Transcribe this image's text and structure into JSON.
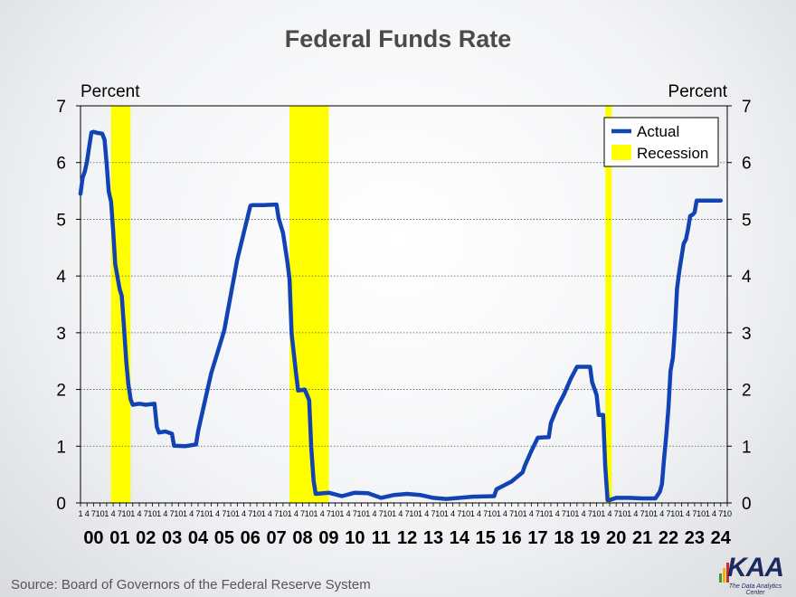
{
  "source": "Source: Board of Governors of the Federal Reserve System",
  "logo": {
    "text": "KAA",
    "tagline": "The Data Analytics Center"
  },
  "colors": {
    "actual": "#1243b4",
    "recession": "#ffff00",
    "title": "#4a4a4a"
  },
  "chart_data": {
    "type": "line",
    "title": "Federal Funds Rate",
    "ylabel_left": "Percent",
    "ylabel_right": "Percent",
    "ylim": [
      0,
      7
    ],
    "yticks": [
      0,
      1,
      2,
      3,
      4,
      5,
      6,
      7
    ],
    "xlim": [
      2000.0,
      2024.75
    ],
    "grid": "horizontal dotted",
    "legend_position": "top-right",
    "quarter_tick_labels": [
      "1",
      "4",
      "7",
      "10"
    ],
    "year_labels": [
      "00",
      "01",
      "02",
      "03",
      "04",
      "05",
      "06",
      "07",
      "08",
      "09",
      "10",
      "11",
      "12",
      "13",
      "14",
      "15",
      "16",
      "17",
      "18",
      "19",
      "20",
      "21",
      "22",
      "23",
      "24"
    ],
    "legend": [
      "Actual",
      "Recession"
    ],
    "recessions": [
      {
        "start": 2001.167,
        "end": 2001.917
      },
      {
        "start": 2008.0,
        "end": 2009.5
      },
      {
        "start": 2020.083,
        "end": 2020.333
      }
    ],
    "series": [
      {
        "name": "Actual",
        "x": [
          2000.0,
          2000.08,
          2000.17,
          2000.25,
          2000.33,
          2000.42,
          2000.5,
          2000.67,
          2000.83,
          2000.92,
          2001.0,
          2001.08,
          2001.17,
          2001.25,
          2001.33,
          2001.42,
          2001.5,
          2001.58,
          2001.67,
          2001.75,
          2001.83,
          2001.92,
          2002.0,
          2002.25,
          2002.5,
          2002.83,
          2002.92,
          2003.0,
          2003.25,
          2003.5,
          2003.58,
          2004.0,
          2004.42,
          2004.5,
          2004.67,
          2005.0,
          2005.5,
          2006.0,
          2006.5,
          2006.58,
          2007.0,
          2007.5,
          2007.58,
          2007.75,
          2007.92,
          2008.0,
          2008.08,
          2008.17,
          2008.25,
          2008.33,
          2008.58,
          2008.75,
          2008.83,
          2008.92,
          2009.0,
          2009.5,
          2010.0,
          2010.5,
          2011.0,
          2011.5,
          2012.0,
          2012.5,
          2013.0,
          2013.5,
          2014.0,
          2014.5,
          2015.0,
          2015.83,
          2015.92,
          2016.5,
          2016.92,
          2017.0,
          2017.25,
          2017.5,
          2017.92,
          2018.0,
          2018.25,
          2018.5,
          2018.75,
          2019.0,
          2019.5,
          2019.58,
          2019.75,
          2019.83,
          2020.0,
          2020.08,
          2020.17,
          2020.25,
          2020.5,
          2021.0,
          2021.5,
          2022.0,
          2022.17,
          2022.25,
          2022.33,
          2022.42,
          2022.5,
          2022.58,
          2022.67,
          2022.75,
          2022.83,
          2022.92,
          2023.0,
          2023.08,
          2023.17,
          2023.25,
          2023.33,
          2023.42,
          2023.5,
          2023.58,
          2024.0,
          2024.5
        ],
        "values": [
          5.45,
          5.73,
          5.85,
          6.02,
          6.27,
          6.53,
          6.54,
          6.52,
          6.51,
          6.4,
          5.98,
          5.49,
          5.31,
          4.8,
          4.21,
          3.97,
          3.77,
          3.65,
          3.07,
          2.49,
          2.09,
          1.82,
          1.73,
          1.75,
          1.73,
          1.75,
          1.34,
          1.24,
          1.26,
          1.22,
          1.01,
          1.0,
          1.03,
          1.26,
          1.61,
          2.28,
          3.04,
          4.29,
          5.24,
          5.25,
          5.25,
          5.26,
          5.02,
          4.76,
          4.24,
          3.94,
          2.98,
          2.61,
          2.28,
          1.98,
          2.0,
          1.81,
          0.97,
          0.39,
          0.16,
          0.18,
          0.12,
          0.18,
          0.17,
          0.09,
          0.14,
          0.16,
          0.14,
          0.09,
          0.07,
          0.09,
          0.11,
          0.12,
          0.24,
          0.38,
          0.54,
          0.65,
          0.91,
          1.15,
          1.16,
          1.41,
          1.69,
          1.91,
          2.18,
          2.4,
          2.4,
          2.13,
          1.9,
          1.55,
          1.55,
          0.65,
          0.05,
          0.05,
          0.09,
          0.09,
          0.08,
          0.08,
          0.2,
          0.33,
          0.77,
          1.21,
          1.68,
          2.33,
          2.56,
          3.08,
          3.78,
          4.1,
          4.33,
          4.57,
          4.65,
          4.83,
          5.06,
          5.08,
          5.12,
          5.33,
          5.33,
          5.33
        ]
      }
    ]
  }
}
